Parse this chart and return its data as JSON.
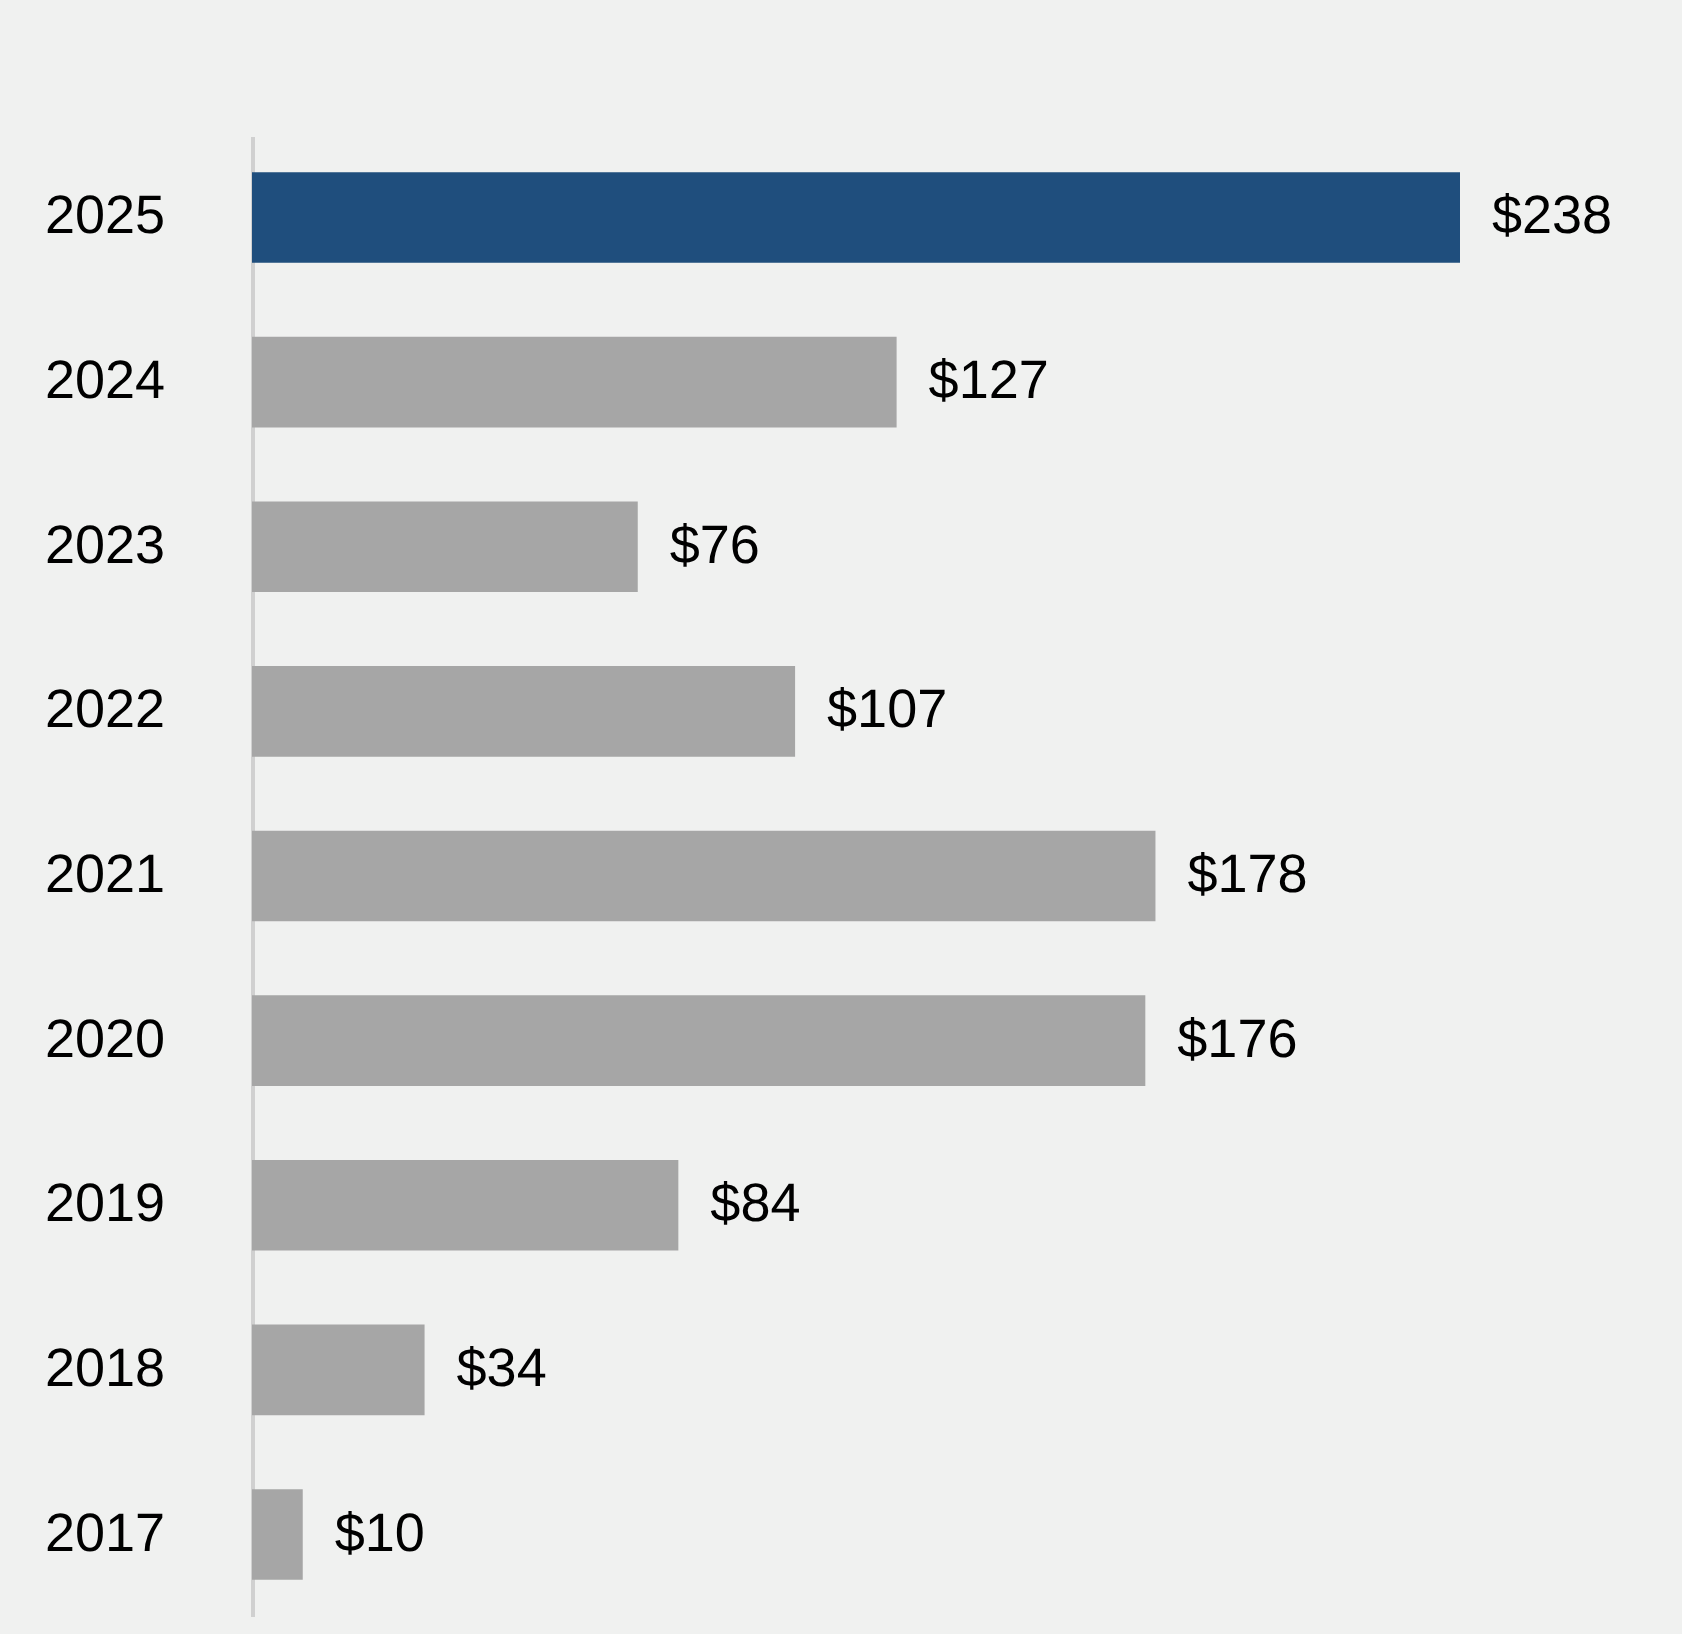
{
  "chart_data": {
    "type": "bar",
    "orientation": "horizontal",
    "categories": [
      "2025",
      "2024",
      "2023",
      "2022",
      "2021",
      "2020",
      "2019",
      "2018",
      "2017"
    ],
    "values": [
      238,
      127,
      76,
      107,
      178,
      176,
      84,
      34,
      10
    ],
    "colors": [
      "#1f4e7d",
      "#a6a6a6",
      "#a6a6a6",
      "#a6a6a6",
      "#a6a6a6",
      "#a6a6a6",
      "#a6a6a6",
      "#a6a6a6",
      "#a6a6a6"
    ],
    "value_labels": [
      "$238",
      "$127",
      "$76",
      "$107",
      "$178",
      "$176",
      "$84",
      "$34",
      "$10"
    ]
  }
}
